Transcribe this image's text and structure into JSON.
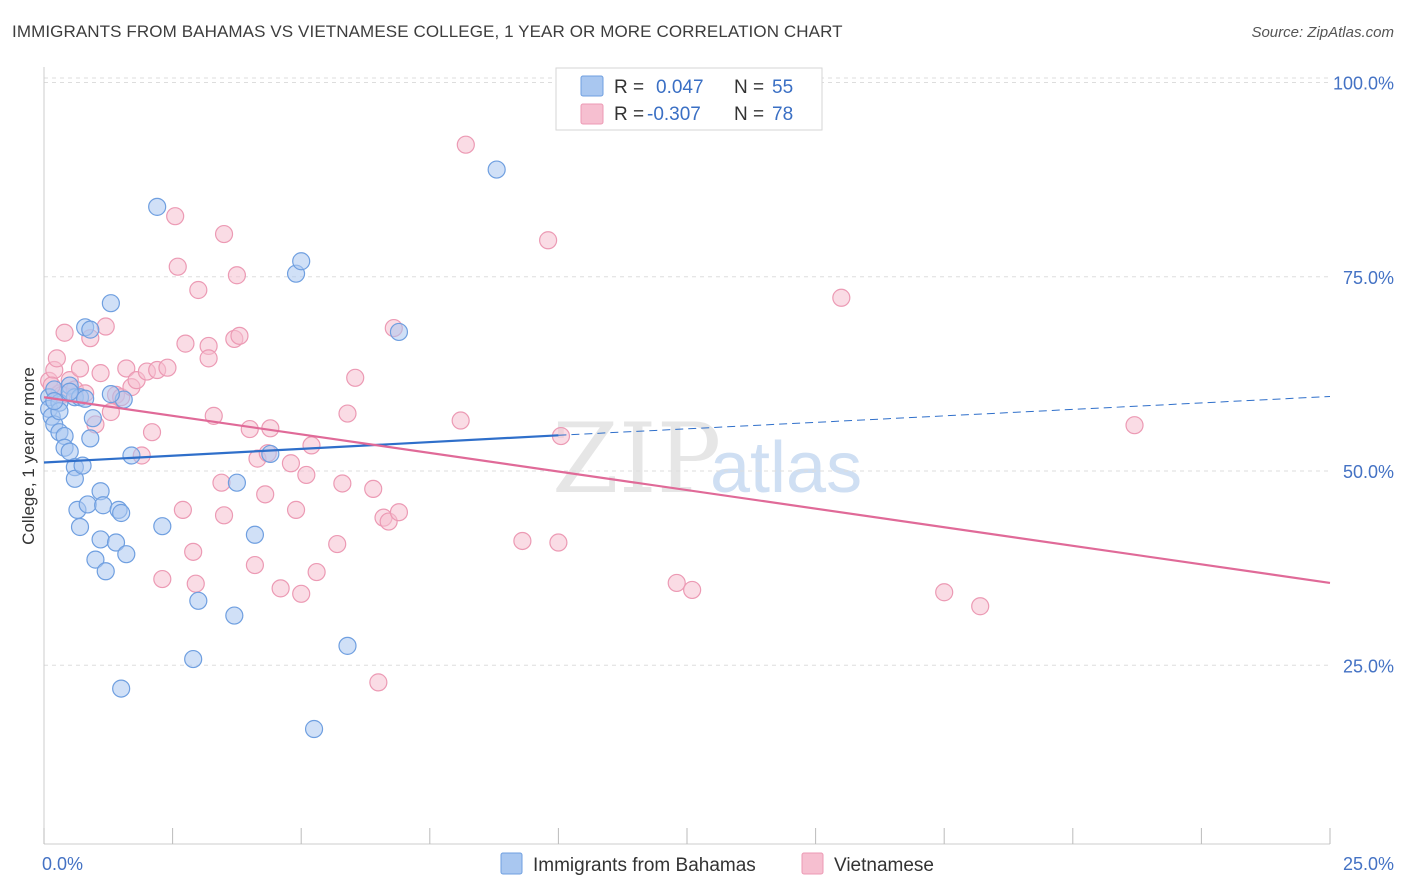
{
  "title": "IMMIGRANTS FROM BAHAMAS VS VIETNAMESE COLLEGE, 1 YEAR OR MORE CORRELATION CHART",
  "source": "Source: ZipAtlas.com",
  "watermark": {
    "zip": "ZIP",
    "atlas": "atlas"
  },
  "colors": {
    "blue_fill": "#a9c7f0",
    "blue_stroke": "#6f9fe0",
    "blue_line": "#2f6fca",
    "pink_fill": "#f6bfd0",
    "pink_stroke": "#ec9ab4",
    "pink_line": "#e06a98",
    "tick_label": "#4472c4",
    "grid": "#dddddd"
  },
  "legend_box": {
    "rows": [
      {
        "r_label": "R =",
        "r_value": "0.047",
        "n_label": "N =",
        "n_value": "55"
      },
      {
        "r_label": "R =",
        "r_value": "-0.307",
        "n_label": "N =",
        "n_value": "78"
      }
    ]
  },
  "chart_data": {
    "type": "scatter",
    "title": "IMMIGRANTS FROM BAHAMAS VS VIETNAMESE COLLEGE, 1 YEAR OR MORE CORRELATION CHART",
    "xlabel": "",
    "ylabel": "College, 1 year or more",
    "xlim": [
      0,
      25
    ],
    "ylim": [
      2,
      102
    ],
    "x_tick_labels": [
      "0.0%",
      "25.0%"
    ],
    "y_ticks": [
      25,
      50,
      75,
      100
    ],
    "y_tick_labels": [
      "25.0%",
      "50.0%",
      "75.0%",
      "100.0%"
    ],
    "grid": true,
    "legend_position": "top-center",
    "series": [
      {
        "name": "Immigrants from Bahamas",
        "color": "#a9c7f0",
        "r": 0.047,
        "n": 55,
        "trend": {
          "x": [
            0,
            10
          ],
          "y": [
            51.1,
            54.6
          ],
          "dashed_to": [
            25,
            59.6
          ]
        },
        "points": [
          [
            0.1,
            59.5
          ],
          [
            0.1,
            58.0
          ],
          [
            0.15,
            57.0
          ],
          [
            0.2,
            56.0
          ],
          [
            0.2,
            60.5
          ],
          [
            0.3,
            55.0
          ],
          [
            0.3,
            58.8
          ],
          [
            0.4,
            54.5
          ],
          [
            0.4,
            53.0
          ],
          [
            0.5,
            52.5
          ],
          [
            0.5,
            61.0
          ],
          [
            0.6,
            59.5
          ],
          [
            0.6,
            50.5
          ],
          [
            0.6,
            49.0
          ],
          [
            0.65,
            45.0
          ],
          [
            0.7,
            42.8
          ],
          [
            0.7,
            59.5
          ],
          [
            0.75,
            50.7
          ],
          [
            0.8,
            68.5
          ],
          [
            0.85,
            45.7
          ],
          [
            0.9,
            68.2
          ],
          [
            0.95,
            56.8
          ],
          [
            1.0,
            38.6
          ],
          [
            1.1,
            47.4
          ],
          [
            1.1,
            41.2
          ],
          [
            1.2,
            37.1
          ],
          [
            1.15,
            45.6
          ],
          [
            1.3,
            71.6
          ],
          [
            1.4,
            40.8
          ],
          [
            1.45,
            45.0
          ],
          [
            1.5,
            22.0
          ],
          [
            1.5,
            44.6
          ],
          [
            1.55,
            59.2
          ],
          [
            1.6,
            39.3
          ],
          [
            1.7,
            52.0
          ],
          [
            2.2,
            84.0
          ],
          [
            2.3,
            42.9
          ],
          [
            2.9,
            25.8
          ],
          [
            3.0,
            33.3
          ],
          [
            3.7,
            31.4
          ],
          [
            3.75,
            48.5
          ],
          [
            4.1,
            41.8
          ],
          [
            4.9,
            75.4
          ],
          [
            5.0,
            77.0
          ],
          [
            4.4,
            52.2
          ],
          [
            5.25,
            16.8
          ],
          [
            5.9,
            27.5
          ],
          [
            6.9,
            67.9
          ],
          [
            8.8,
            88.8
          ],
          [
            0.5,
            60.2
          ],
          [
            0.8,
            59.3
          ],
          [
            0.3,
            57.7
          ],
          [
            0.9,
            54.2
          ],
          [
            0.2,
            59.0
          ],
          [
            1.3,
            59.9
          ]
        ]
      },
      {
        "name": "Vietnamese",
        "color": "#f6bfd0",
        "r": -0.307,
        "n": 78,
        "trend": {
          "x": [
            0,
            25
          ],
          "y": [
            59.5,
            35.6
          ]
        },
        "points": [
          [
            0.1,
            61.6
          ],
          [
            0.2,
            63.0
          ],
          [
            0.25,
            64.5
          ],
          [
            0.3,
            60.0
          ],
          [
            0.35,
            59.8
          ],
          [
            0.4,
            67.8
          ],
          [
            0.5,
            61.7
          ],
          [
            0.6,
            60.5
          ],
          [
            0.7,
            63.2
          ],
          [
            0.8,
            60.0
          ],
          [
            0.9,
            67.1
          ],
          [
            1.0,
            56.0
          ],
          [
            1.1,
            62.6
          ],
          [
            1.2,
            68.6
          ],
          [
            1.3,
            57.6
          ],
          [
            1.4,
            59.8
          ],
          [
            1.5,
            59.5
          ],
          [
            1.6,
            63.2
          ],
          [
            1.7,
            60.8
          ],
          [
            1.8,
            61.7
          ],
          [
            1.9,
            52.0
          ],
          [
            2.0,
            62.8
          ],
          [
            2.1,
            55.0
          ],
          [
            2.2,
            63.0
          ],
          [
            2.4,
            63.3
          ],
          [
            2.3,
            36.1
          ],
          [
            2.55,
            82.8
          ],
          [
            2.6,
            76.3
          ],
          [
            2.7,
            45.0
          ],
          [
            2.75,
            66.4
          ],
          [
            2.9,
            39.6
          ],
          [
            2.95,
            35.5
          ],
          [
            3.0,
            73.3
          ],
          [
            3.2,
            66.1
          ],
          [
            3.2,
            64.5
          ],
          [
            3.3,
            57.1
          ],
          [
            3.45,
            48.5
          ],
          [
            3.5,
            44.3
          ],
          [
            3.5,
            80.5
          ],
          [
            3.7,
            67.0
          ],
          [
            3.75,
            75.2
          ],
          [
            3.8,
            67.4
          ],
          [
            4.0,
            55.4
          ],
          [
            4.1,
            37.9
          ],
          [
            4.15,
            51.6
          ],
          [
            4.3,
            47.0
          ],
          [
            4.4,
            55.5
          ],
          [
            4.35,
            52.3
          ],
          [
            4.6,
            34.9
          ],
          [
            4.8,
            51.0
          ],
          [
            4.9,
            45.0
          ],
          [
            5.0,
            34.2
          ],
          [
            5.2,
            53.3
          ],
          [
            5.1,
            49.5
          ],
          [
            5.3,
            37.0
          ],
          [
            5.7,
            40.6
          ],
          [
            5.8,
            48.4
          ],
          [
            5.9,
            57.4
          ],
          [
            6.05,
            62.0
          ],
          [
            6.4,
            47.7
          ],
          [
            6.6,
            44.0
          ],
          [
            6.7,
            43.5
          ],
          [
            6.9,
            44.7
          ],
          [
            6.5,
            22.8
          ],
          [
            6.8,
            68.4
          ],
          [
            8.1,
            56.5
          ],
          [
            8.2,
            92.0
          ],
          [
            9.3,
            41.0
          ],
          [
            9.8,
            79.7
          ],
          [
            10.0,
            40.8
          ],
          [
            10.05,
            54.5
          ],
          [
            12.3,
            35.6
          ],
          [
            12.6,
            34.7
          ],
          [
            15.5,
            72.3
          ],
          [
            17.5,
            34.4
          ],
          [
            18.2,
            32.6
          ],
          [
            21.2,
            55.9
          ],
          [
            0.15,
            61.0
          ]
        ]
      }
    ]
  },
  "bottom_legend": [
    {
      "label": "Immigrants from Bahamas"
    },
    {
      "label": "Vietnamese"
    }
  ]
}
